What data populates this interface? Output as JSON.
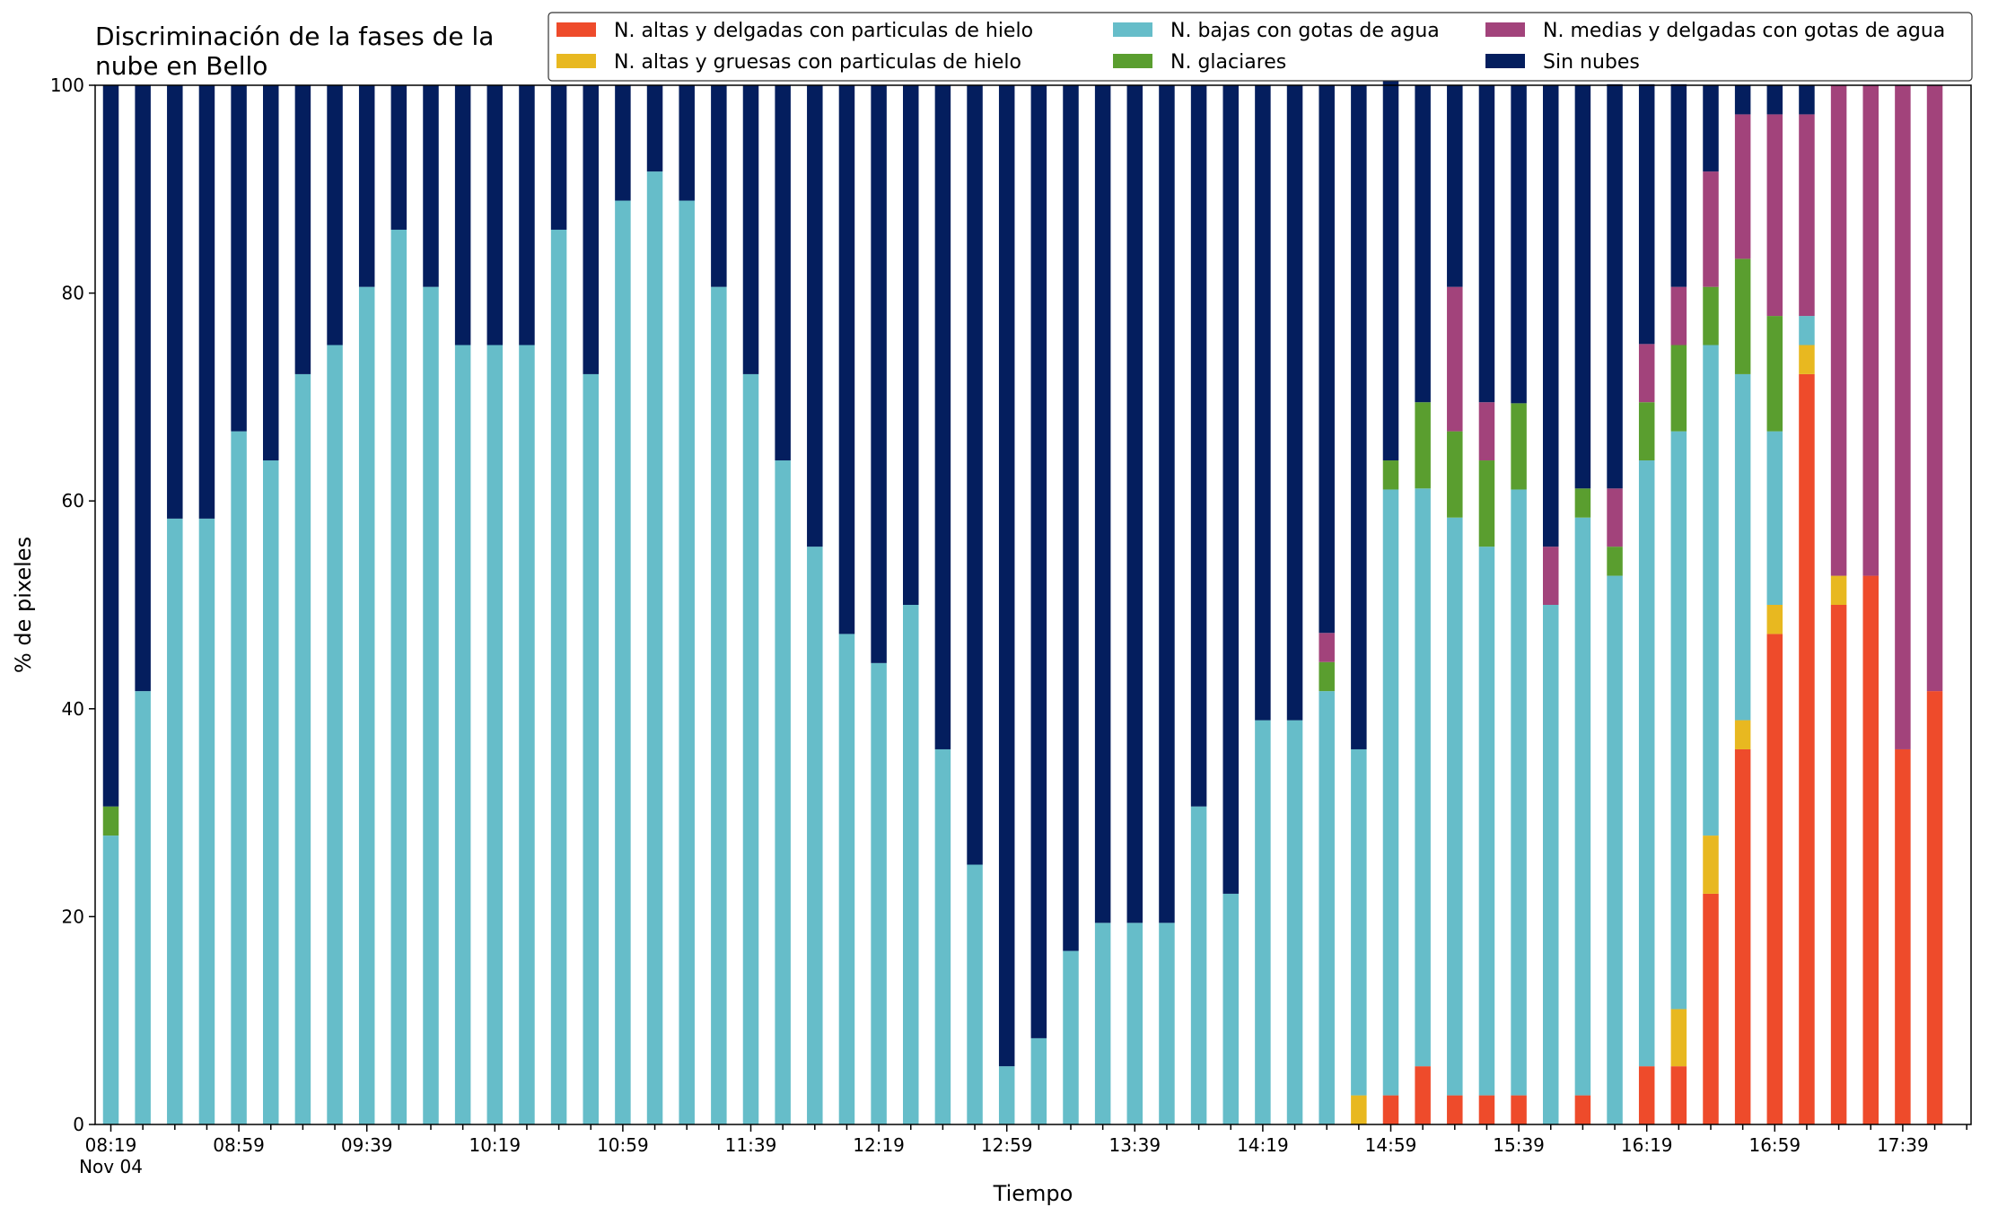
{
  "chart_data": {
    "type": "bar",
    "stacked": true,
    "title": [
      "Discriminación de la fases de la",
      "nube en Bello"
    ],
    "xlabel": "Tiempo",
    "ylabel": "% de pixeles",
    "ylim": [
      0,
      100
    ],
    "yticks": [
      0,
      20,
      40,
      60,
      80,
      100
    ],
    "xtick_labels": [
      {
        "index": 0,
        "label": "08:19",
        "sublabel": "Nov 04"
      },
      {
        "index": 4,
        "label": "08:59"
      },
      {
        "index": 8,
        "label": "09:39"
      },
      {
        "index": 12,
        "label": "10:19"
      },
      {
        "index": 16,
        "label": "10:59"
      },
      {
        "index": 20,
        "label": "11:39"
      },
      {
        "index": 24,
        "label": "12:19"
      },
      {
        "index": 28,
        "label": "12:59"
      },
      {
        "index": 32,
        "label": "13:39"
      },
      {
        "index": 36,
        "label": "14:19"
      },
      {
        "index": 40,
        "label": "14:59"
      },
      {
        "index": 44,
        "label": "15:39"
      },
      {
        "index": 48,
        "label": "16:19"
      },
      {
        "index": 52,
        "label": "16:59"
      },
      {
        "index": 56,
        "label": "17:39"
      }
    ],
    "bar_count": 58,
    "tick_count": 59,
    "legend_position": "top-right",
    "series": [
      {
        "name": "N. altas y delgadas con particulas de hielo",
        "color": "#ee4b2b",
        "values": [
          0,
          0,
          0,
          0,
          0,
          0,
          0,
          0,
          0,
          0,
          0,
          0,
          0,
          0,
          0,
          0,
          0,
          0,
          0,
          0,
          0,
          0,
          0,
          0,
          0,
          0,
          0,
          0,
          0,
          0,
          0,
          0,
          0,
          0,
          0,
          0,
          0,
          0,
          0,
          0,
          2.8,
          5.6,
          2.8,
          2.8,
          2.8,
          0,
          2.8,
          0,
          5.6,
          5.6,
          22.2,
          36.1,
          47.2,
          72.2,
          50,
          52.8,
          36.1,
          41.7
        ]
      },
      {
        "name": "N. altas y gruesas con particulas de hielo",
        "color": "#e8b820",
        "values": [
          0,
          0,
          0,
          0,
          0,
          0,
          0,
          0,
          0,
          0,
          0,
          0,
          0,
          0,
          0,
          0,
          0,
          0,
          0,
          0,
          0,
          0,
          0,
          0,
          0,
          0,
          0,
          0,
          0,
          0,
          0,
          0,
          0,
          0,
          0,
          0,
          0,
          0,
          0,
          2.8,
          0,
          0,
          0,
          0,
          0,
          0,
          0,
          0,
          0,
          5.5,
          5.6,
          2.8,
          2.8,
          2.8,
          2.8,
          0,
          0,
          0
        ]
      },
      {
        "name": "N. bajas con gotas de agua",
        "color": "#66bdc9",
        "values": [
          27.8,
          41.7,
          58.3,
          58.3,
          66.7,
          63.9,
          72.2,
          75,
          80.6,
          86.1,
          80.6,
          75,
          75,
          75,
          86.1,
          72.2,
          88.9,
          91.7,
          88.9,
          80.6,
          72.2,
          63.9,
          55.6,
          47.2,
          44.4,
          50,
          36.1,
          25,
          5.6,
          8.3,
          16.7,
          19.4,
          19.4,
          19.4,
          30.6,
          22.2,
          38.9,
          38.9,
          41.7,
          33.3,
          58.3,
          55.6,
          55.6,
          52.8,
          58.3,
          50,
          55.6,
          52.8,
          58.3,
          55.6,
          47.2,
          33.3,
          16.7,
          2.8,
          0,
          0,
          0,
          0
        ]
      },
      {
        "name": "N. glaciares",
        "color": "#5a9e2f",
        "values": [
          2.8,
          0,
          0,
          0,
          0,
          0,
          0,
          0,
          0,
          0,
          0,
          0,
          0,
          0,
          0,
          0,
          0,
          0,
          0,
          0,
          0,
          0,
          0,
          0,
          0,
          0,
          0,
          0,
          0,
          0,
          0,
          0,
          0,
          0,
          0,
          0,
          0,
          0,
          2.8,
          0,
          2.8,
          8.3,
          8.3,
          8.3,
          8.3,
          0,
          2.8,
          2.8,
          5.6,
          8.3,
          5.6,
          11.1,
          11.1,
          0,
          0,
          0,
          0,
          0
        ]
      },
      {
        "name": "N. medias y delgadas con gotas de agua",
        "color": "#a2437b",
        "values": [
          0,
          0,
          0,
          0,
          0,
          0,
          0,
          0,
          0,
          0,
          0,
          0,
          0,
          0,
          0,
          0,
          0,
          0,
          0,
          0,
          0,
          0,
          0,
          0,
          0,
          0,
          0,
          0,
          0,
          0,
          0,
          0,
          0,
          0,
          0,
          0,
          0,
          0,
          2.8,
          0,
          0,
          0,
          13.9,
          5.6,
          0,
          5.6,
          0,
          5.6,
          5.6,
          5.6,
          11.1,
          13.9,
          19.4,
          19.4,
          47.2,
          47.2,
          63.9,
          58.3
        ]
      },
      {
        "name": "Sin nubes",
        "color": "#041e5e",
        "values": [
          69.4,
          58.3,
          41.7,
          41.7,
          33.3,
          36.1,
          27.8,
          25,
          19.4,
          13.9,
          19.4,
          25,
          25,
          25,
          13.9,
          27.8,
          11.1,
          8.3,
          11.1,
          19.4,
          27.8,
          36.1,
          44.4,
          52.8,
          55.6,
          50,
          63.9,
          75,
          94.4,
          91.7,
          83.3,
          80.6,
          80.6,
          80.6,
          69.4,
          77.8,
          61.1,
          61.1,
          52.7,
          63.9,
          38.9,
          30.5,
          19.4,
          30.5,
          30.6,
          44.4,
          38.8,
          38.9,
          25,
          19.5,
          8.3,
          2.8,
          2.8,
          2.8,
          0,
          0,
          0,
          0
        ]
      }
    ]
  }
}
